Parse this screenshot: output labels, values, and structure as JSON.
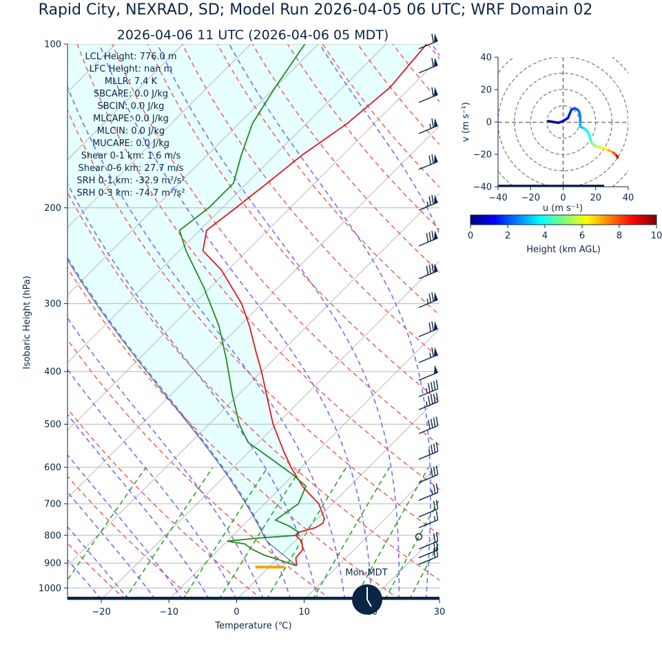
{
  "page": {
    "title": "Rapid City, NEXRAD, SD; Model Run 2026-04-05 06 UTC; WRF Domain 02",
    "subtitle": "2026-04-06 11 UTC  (2026-04-06 05 MDT)"
  },
  "colors": {
    "text": "#0b2545",
    "temperature": "#e8141a",
    "dewpoint": "#1f8a1f",
    "dry_adiabat": "#f06464",
    "moist_adiabat": "#6e6ef5",
    "mixing_ratio": "#2ca02c",
    "isotherm": "#b0b0b0",
    "cape_fill": "#e6ffff",
    "freezing_bar": "#f5a300",
    "wind_barb": "#0b2545"
  },
  "chart_data": [
    {
      "type": "line",
      "kind": "skew-t log-p sounding",
      "xlabel": "Temperature (℃)",
      "ylabel": "Isobaric Height (hPa)",
      "xlim": [
        -25,
        30
      ],
      "ylim": [
        1050,
        100
      ],
      "y_scale": "log",
      "x_ticks": [
        "−20",
        "−10",
        "0",
        "10",
        "20",
        "30"
      ],
      "y_ticks": [
        "100",
        "200",
        "300",
        "400",
        "500",
        "600",
        "700",
        "800",
        "900",
        "1000"
      ],
      "y_tick_values": [
        100,
        200,
        300,
        400,
        500,
        600,
        700,
        800,
        900,
        1000
      ],
      "grid": true,
      "series": [
        {
          "role": "temperature",
          "color": "#e8141a",
          "points": [
            {
              "p": 910,
              "t": 3.9
            },
            {
              "p": 880,
              "t": 2.6
            },
            {
              "p": 850,
              "t": 2.4
            },
            {
              "p": 820,
              "t": 1.0
            },
            {
              "p": 800,
              "t": -0.8
            },
            {
              "p": 790,
              "t": -0.8
            },
            {
              "p": 775,
              "t": 1.0
            },
            {
              "p": 760,
              "t": 1.5
            },
            {
              "p": 745,
              "t": 1.0
            },
            {
              "p": 700,
              "t": -2.0
            },
            {
              "p": 670,
              "t": -5.0
            },
            {
              "p": 650,
              "t": -7.0
            },
            {
              "p": 600,
              "t": -11.5
            },
            {
              "p": 560,
              "t": -15.0
            },
            {
              "p": 500,
              "t": -20.5
            },
            {
              "p": 450,
              "t": -25.0
            },
            {
              "p": 400,
              "t": -30.0
            },
            {
              "p": 370,
              "t": -33.5
            },
            {
              "p": 330,
              "t": -38.5
            },
            {
              "p": 300,
              "t": -43.0
            },
            {
              "p": 260,
              "t": -51.0
            },
            {
              "p": 240,
              "t": -56.5
            },
            {
              "p": 220,
              "t": -59.0
            },
            {
              "p": 200,
              "t": -58.0
            },
            {
              "p": 180,
              "t": -57.0
            },
            {
              "p": 160,
              "t": -56.0
            },
            {
              "p": 140,
              "t": -54.0
            },
            {
              "p": 120,
              "t": -53.0
            },
            {
              "p": 100,
              "t": -54.0
            }
          ]
        },
        {
          "role": "dewpoint",
          "color": "#1f8a1f",
          "points": [
            {
              "p": 910,
              "t": 3.8
            },
            {
              "p": 890,
              "t": 0.8
            },
            {
              "p": 870,
              "t": -2.5
            },
            {
              "p": 850,
              "t": -5.0
            },
            {
              "p": 830,
              "t": -7.0
            },
            {
              "p": 820,
              "t": -10.0
            },
            {
              "p": 810,
              "t": -6.0
            },
            {
              "p": 800,
              "t": -0.5
            },
            {
              "p": 790,
              "t": -0.7
            },
            {
              "p": 770,
              "t": -3.0
            },
            {
              "p": 750,
              "t": -6.0
            },
            {
              "p": 700,
              "t": -5.0
            },
            {
              "p": 650,
              "t": -6.5
            },
            {
              "p": 620,
              "t": -10.0
            },
            {
              "p": 580,
              "t": -15.5
            },
            {
              "p": 540,
              "t": -21.5
            },
            {
              "p": 500,
              "t": -25.5
            },
            {
              "p": 440,
              "t": -31.0
            },
            {
              "p": 380,
              "t": -37.0
            },
            {
              "p": 330,
              "t": -43.0
            },
            {
              "p": 280,
              "t": -51.0
            },
            {
              "p": 240,
              "t": -59.0
            },
            {
              "p": 220,
              "t": -63.0
            },
            {
              "p": 200,
              "t": -62.0
            },
            {
              "p": 180,
              "t": -62.0
            },
            {
              "p": 160,
              "t": -65.0
            },
            {
              "p": 140,
              "t": -68.0
            },
            {
              "p": 120,
              "t": -70.0
            },
            {
              "p": 100,
              "t": -72.0
            }
          ]
        },
        {
          "role": "parcel-profile",
          "color": "#0b2545",
          "points": [
            {
              "p": 910,
              "t": 3.9
            },
            {
              "p": 850,
              "t": -1.8
            },
            {
              "p": 800,
              "t": -5.0
            },
            {
              "p": 700,
              "t": -11.9
            },
            {
              "p": 600,
              "t": -20.0
            },
            {
              "p": 500,
              "t": -29.7
            },
            {
              "p": 400,
              "t": -42.0
            },
            {
              "p": 350,
              "t": -49.3
            }
          ]
        }
      ],
      "wind_barbs": [
        {
          "p": 102,
          "speed_kt": 58
        },
        {
          "p": 113,
          "speed_kt": 60
        },
        {
          "p": 128,
          "speed_kt": 60
        },
        {
          "p": 146,
          "speed_kt": 65
        },
        {
          "p": 170,
          "speed_kt": 70
        },
        {
          "p": 202,
          "speed_kt": 75
        },
        {
          "p": 235,
          "speed_kt": 80
        },
        {
          "p": 270,
          "speed_kt": 80
        },
        {
          "p": 305,
          "speed_kt": 75
        },
        {
          "p": 345,
          "speed_kt": 70
        },
        {
          "p": 385,
          "speed_kt": 65
        },
        {
          "p": 415,
          "speed_kt": 50
        },
        {
          "p": 445,
          "speed_kt": 45
        },
        {
          "p": 470,
          "speed_kt": 45
        },
        {
          "p": 520,
          "speed_kt": 40
        },
        {
          "p": 580,
          "speed_kt": 35
        },
        {
          "p": 640,
          "speed_kt": 30
        },
        {
          "p": 690,
          "speed_kt": 25
        },
        {
          "p": 740,
          "speed_kt": 20
        },
        {
          "p": 775,
          "speed_kt": 15
        },
        {
          "p": 805,
          "speed_kt": 0
        },
        {
          "p": 848,
          "speed_kt": 20
        },
        {
          "p": 880,
          "speed_kt": 20
        },
        {
          "p": 905,
          "speed_kt": 20
        }
      ],
      "freezing_level_p": 915,
      "stats": [
        "LCL Height: 776.0 m",
        "LFC Height: nan m",
        "MLLR: 7.4 K",
        "SBCAPE: 0.0 J/kg",
        "SBCIN: 0.0 J/kg",
        "MLCAPE: 0.0 J/kg",
        "MLCIN: 0.0 J/kg",
        "MUCAPE: 0.0 J/kg",
        "Shear 0-1 km: 1.6 m/s",
        "Shear 0-6 km: 27.7 m/s",
        "SRH 0-1 km: -32.9 m²/s²",
        "SRH 0-3 km: -74.7 m²/s²"
      ],
      "clock": {
        "label": "Mon-MDT",
        "hour": 5,
        "minute": 0
      }
    },
    {
      "type": "line",
      "kind": "hodograph",
      "xlabel": "u (m s⁻¹)",
      "ylabel": "v (m s⁻¹)",
      "xlim": [
        -40,
        40
      ],
      "ylim": [
        -40,
        40
      ],
      "x_ticks": [
        "−40",
        "−20",
        "0",
        "20",
        "40"
      ],
      "y_ticks": [
        "40",
        "20",
        "0",
        "−20",
        "−40"
      ],
      "tick_values": [
        -40,
        -20,
        0,
        20,
        40
      ],
      "ring_radii": [
        10,
        20,
        30,
        40
      ],
      "points": [
        {
          "u": -9,
          "v": 0.5,
          "h": 0.0
        },
        {
          "u": -6,
          "v": 0,
          "h": 0.3
        },
        {
          "u": -3,
          "v": -0.5,
          "h": 0.6
        },
        {
          "u": 0,
          "v": 0.5,
          "h": 0.9
        },
        {
          "u": 1.5,
          "v": 1.5,
          "h": 1.1
        },
        {
          "u": 3,
          "v": 2.5,
          "h": 1.3
        },
        {
          "u": 4,
          "v": 5,
          "h": 1.5
        },
        {
          "u": 5,
          "v": 7.5,
          "h": 1.7
        },
        {
          "u": 7,
          "v": 8.5,
          "h": 1.9
        },
        {
          "u": 9,
          "v": 7.5,
          "h": 2.1
        },
        {
          "u": 10,
          "v": 6,
          "h": 2.3
        },
        {
          "u": 10.5,
          "v": 3,
          "h": 2.5
        },
        {
          "u": 10.5,
          "v": -0.5,
          "h": 2.8
        },
        {
          "u": 10.5,
          "v": -3,
          "h": 3.1
        },
        {
          "u": 13,
          "v": -4,
          "h": 3.4
        },
        {
          "u": 15.5,
          "v": -6.5,
          "h": 3.8
        },
        {
          "u": 16.5,
          "v": -10,
          "h": 4.2
        },
        {
          "u": 17.5,
          "v": -13,
          "h": 4.7
        },
        {
          "u": 20,
          "v": -15,
          "h": 5.3
        },
        {
          "u": 24,
          "v": -16,
          "h": 6.0
        },
        {
          "u": 28,
          "v": -17.5,
          "h": 6.7
        },
        {
          "u": 31,
          "v": -19,
          "h": 7.4
        },
        {
          "u": 33,
          "v": -21,
          "h": 8.5
        },
        {
          "u": 33.5,
          "v": -22,
          "h": 9.5
        }
      ],
      "colorbar": {
        "label": "Height (km AGL)",
        "ticks": [
          "0",
          "2",
          "4",
          "6",
          "8",
          "10"
        ],
        "range": [
          0,
          10
        ],
        "colormap": [
          "#00007f",
          "#0000ff",
          "#007fff",
          "#00ffff",
          "#7fff7f",
          "#ffff00",
          "#ff7f00",
          "#ff0000",
          "#7f0000"
        ]
      }
    }
  ]
}
